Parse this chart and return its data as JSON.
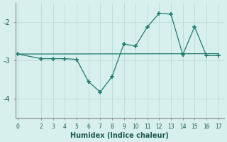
{
  "xlabel": "Humidex (Indice chaleur)",
  "background_color": "#d8f0ed",
  "grid_color": "#c0ddd9",
  "line_color": "#1e7b6e",
  "line1_x": [
    0,
    2,
    3,
    4,
    5,
    6,
    7,
    8,
    9,
    10,
    11,
    12,
    13,
    14,
    15,
    16,
    17
  ],
  "line1_y": [
    -2.83,
    -2.95,
    -2.95,
    -2.95,
    -2.97,
    -3.55,
    -3.82,
    -3.42,
    -2.57,
    -2.62,
    -2.12,
    -1.77,
    -1.79,
    -2.85,
    -2.12,
    -2.87,
    -2.87
  ],
  "line2_x": [
    0,
    17
  ],
  "line2_y": [
    -2.83,
    -2.82
  ],
  "xlim": [
    -0.2,
    17.5
  ],
  "ylim": [
    -4.5,
    -1.5
  ],
  "yticks": [
    -4,
    -3,
    -2
  ],
  "xticks": [
    0,
    2,
    3,
    4,
    5,
    6,
    7,
    8,
    9,
    10,
    11,
    12,
    13,
    14,
    15,
    16,
    17
  ]
}
